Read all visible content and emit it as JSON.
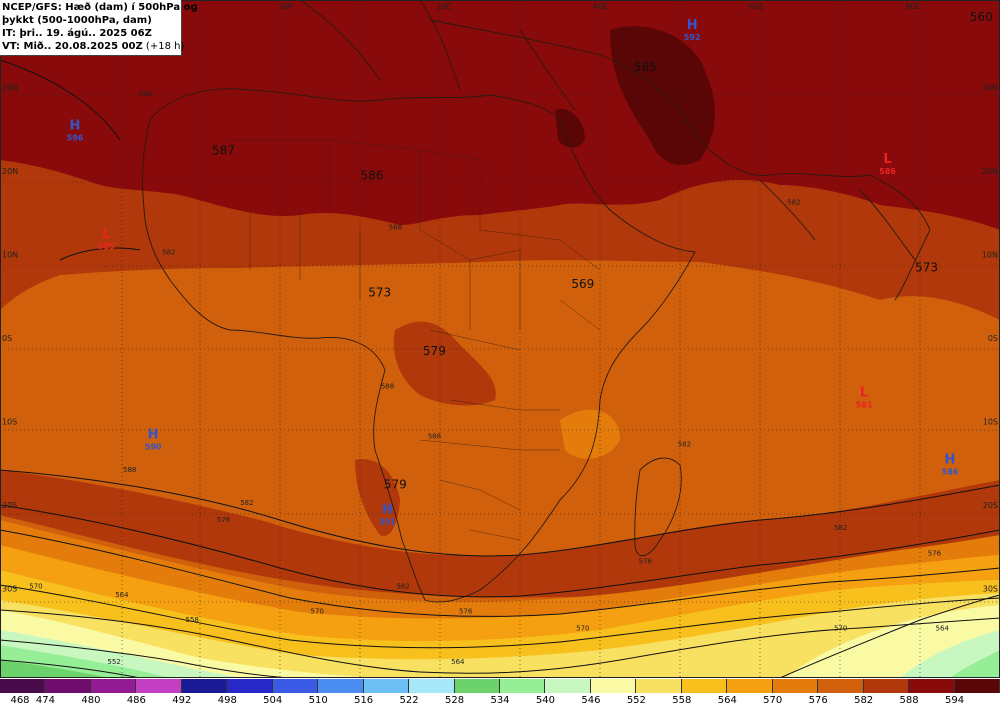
{
  "info": {
    "line1": "NCEP/GFS: Hæð (dam) í 500hPa og",
    "line2": "þykkt (500-1000hPa, dam)",
    "line3": "IT: þri.. 19. ágú.. 2025 06Z",
    "line4": "VT: Mið.. 20.08.2025 00Z",
    "line4b": "(+18 h)"
  },
  "lon_labels": [
    {
      "text": "0W",
      "lon": 0
    },
    {
      "text": "20E",
      "lon": 20
    },
    {
      "text": "40E",
      "lon": 40
    },
    {
      "text": "60E",
      "lon": 60
    },
    {
      "text": "80E",
      "lon": 80
    }
  ],
  "lat_labels": [
    {
      "text": "30N",
      "lat": 30
    },
    {
      "text": "20N",
      "lat": 20
    },
    {
      "text": "10N",
      "lat": 10
    },
    {
      "text": "0S",
      "lat": 0
    },
    {
      "text": "10S",
      "lat": -10
    },
    {
      "text": "20S",
      "lat": -20
    },
    {
      "text": "30S",
      "lat": -30
    }
  ],
  "big_labels": [
    {
      "text": "587",
      "lon": -7,
      "lat": 22
    },
    {
      "text": "586",
      "lon": 12,
      "lat": 19
    },
    {
      "text": "573",
      "lon": 13,
      "lat": 5
    },
    {
      "text": "569",
      "lon": 39,
      "lat": 6
    },
    {
      "text": "579",
      "lon": 20,
      "lat": -2
    },
    {
      "text": "579",
      "lon": 15,
      "lat": -18
    },
    {
      "text": "573",
      "lon": 83,
      "lat": 8
    },
    {
      "text": "560",
      "lon": 90,
      "lat": 38
    },
    {
      "text": "585",
      "lon": 47,
      "lat": 32
    }
  ],
  "highs_lows": [
    {
      "type": "H",
      "value": "592",
      "lon": 53,
      "lat": 37,
      "color": "#3355cc"
    },
    {
      "type": "H",
      "value": "596",
      "lon": -26,
      "lat": 25,
      "color": "#3355cc"
    },
    {
      "type": "L",
      "value": "585",
      "lon": -22,
      "lat": 12,
      "color": "#ee2222"
    },
    {
      "type": "L",
      "value": "586",
      "lon": 78,
      "lat": 21,
      "color": "#ee2222"
    },
    {
      "type": "L",
      "value": "581",
      "lon": 75,
      "lat": -7,
      "color": "#ee2222"
    },
    {
      "type": "H",
      "value": "590",
      "lon": -16,
      "lat": -12,
      "color": "#3355cc"
    },
    {
      "type": "H",
      "value": "591",
      "lon": 14,
      "lat": -21,
      "color": "#3355cc"
    },
    {
      "type": "H",
      "value": "586",
      "lon": 86,
      "lat": -15,
      "color": "#3355cc"
    }
  ],
  "contour_labels": [
    {
      "text": "594",
      "lon": -17,
      "lat": 29
    },
    {
      "text": "588",
      "lon": 14,
      "lat": -6
    },
    {
      "text": "588",
      "lon": -19,
      "lat": -16
    },
    {
      "text": "588",
      "lon": 20,
      "lat": -12
    },
    {
      "text": "582",
      "lon": -4,
      "lat": -20
    },
    {
      "text": "582",
      "lon": 52,
      "lat": -13
    },
    {
      "text": "582",
      "lon": 72,
      "lat": -23
    },
    {
      "text": "582",
      "lon": 66,
      "lat": 16
    },
    {
      "text": "582",
      "lon": 16,
      "lat": -30
    },
    {
      "text": "576",
      "lon": -7,
      "lat": -22
    },
    {
      "text": "576",
      "lon": 24,
      "lat": -33
    },
    {
      "text": "576",
      "lon": 47,
      "lat": -27
    },
    {
      "text": "576",
      "lon": 84,
      "lat": -26
    },
    {
      "text": "570",
      "lon": -31,
      "lat": -30
    },
    {
      "text": "570",
      "lon": 5,
      "lat": -33
    },
    {
      "text": "570",
      "lon": 39,
      "lat": -35
    },
    {
      "text": "570",
      "lon": 72,
      "lat": -35
    },
    {
      "text": "564",
      "lon": -20,
      "lat": -31
    },
    {
      "text": "564",
      "lon": 23,
      "lat": -39
    },
    {
      "text": "564",
      "lon": 85,
      "lat": -35
    },
    {
      "text": "558",
      "lon": -11,
      "lat": -34
    },
    {
      "text": "552",
      "lon": -21,
      "lat": -39
    },
    {
      "text": "588",
      "lon": 15,
      "lat": 13
    },
    {
      "text": "582",
      "lon": -14,
      "lat": 10
    }
  ],
  "legend": [
    {
      "label": "468",
      "color": "#4a0b4a"
    },
    {
      "label": "474",
      "color": "#6e0d6e"
    },
    {
      "label": "480",
      "color": "#921a92"
    },
    {
      "label": "486",
      "color": "#c23ec2"
    },
    {
      "label": "492",
      "color": "#1a1a96"
    },
    {
      "label": "498",
      "color": "#2828c8"
    },
    {
      "label": "504",
      "color": "#3a5ae6"
    },
    {
      "label": "510",
      "color": "#4a8cf0"
    },
    {
      "label": "516",
      "color": "#6cc0f4"
    },
    {
      "label": "522",
      "color": "#a6e8f8"
    },
    {
      "label": "528",
      "color": "#6cd26c"
    },
    {
      "label": "534",
      "color": "#96ee96"
    },
    {
      "label": "540",
      "color": "#c8f8c0"
    },
    {
      "label": "546",
      "color": "#fafaa4"
    },
    {
      "label": "552",
      "color": "#f8e060"
    },
    {
      "label": "558",
      "color": "#f8c01c"
    },
    {
      "label": "564",
      "color": "#f4a010"
    },
    {
      "label": "570",
      "color": "#e47c0c"
    },
    {
      "label": "576",
      "color": "#d0600c"
    },
    {
      "label": "582",
      "color": "#b0380a"
    },
    {
      "label": "588",
      "color": "#880a0a"
    },
    {
      "label": "594",
      "color": "#5a0606"
    }
  ]
}
